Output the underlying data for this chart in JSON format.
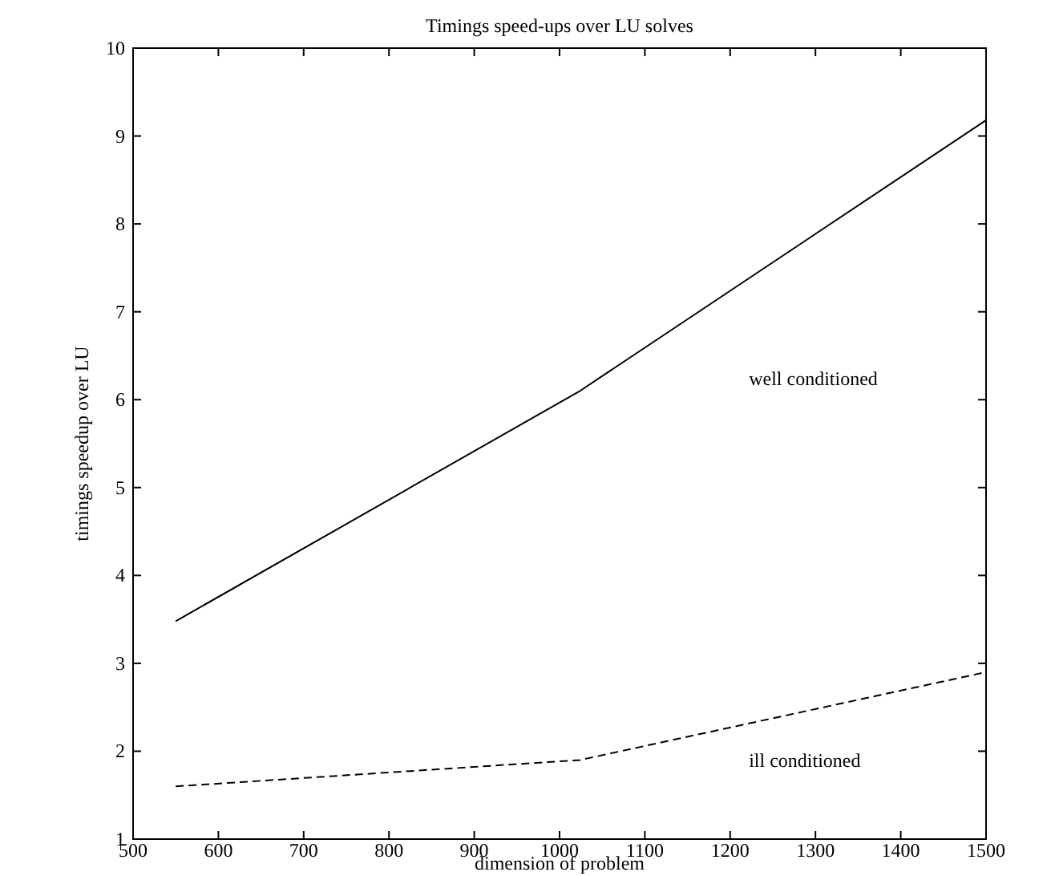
{
  "chart_data": {
    "type": "line",
    "title": "Timings speed-ups over LU solves",
    "xlabel": "dimension of problem",
    "ylabel": "timings speedup over LU",
    "x": [
      550,
      1024,
      1500
    ],
    "series": [
      {
        "color": "#000000",
        "values": [
          3.48,
          6.1,
          9.18
        ],
        "line_style": "solid"
      },
      {
        "color": "#000000",
        "values": [
          1.6,
          1.9,
          2.9
        ],
        "line_style": "dashed"
      }
    ],
    "annotations": [
      "well conditioned",
      "ill conditioned"
    ],
    "xlim": [
      500,
      1500
    ],
    "xticks": [
      500,
      600,
      700,
      800,
      900,
      1000,
      1100,
      1200,
      1300,
      1400,
      1500
    ],
    "ylim": [
      1,
      10
    ],
    "yticks": [
      1,
      2,
      3,
      4,
      5,
      6,
      7,
      8,
      9,
      10
    ],
    "grid": false,
    "marker": "none"
  }
}
